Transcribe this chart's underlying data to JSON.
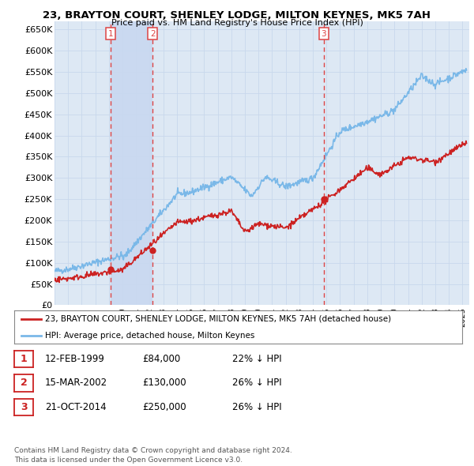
{
  "title": "23, BRAYTON COURT, SHENLEY LODGE, MILTON KEYNES, MK5 7AH",
  "subtitle": "Price paid vs. HM Land Registry's House Price Index (HPI)",
  "ylim": [
    0,
    670000
  ],
  "yticks": [
    0,
    50000,
    100000,
    150000,
    200000,
    250000,
    300000,
    350000,
    400000,
    450000,
    500000,
    550000,
    600000,
    650000
  ],
  "ytick_labels": [
    "£0",
    "£50K",
    "£100K",
    "£150K",
    "£200K",
    "£250K",
    "£300K",
    "£350K",
    "£400K",
    "£450K",
    "£500K",
    "£550K",
    "£600K",
    "£650K"
  ],
  "hpi_color": "#7ab8e8",
  "price_color": "#cc2222",
  "vline_color": "#dd4444",
  "grid_color": "#c8d8ec",
  "plot_bg": "#dde8f4",
  "shade_color": "#c8d8f0",
  "transactions": [
    {
      "label": "1",
      "date": 1999.12,
      "price": 84000
    },
    {
      "label": "2",
      "date": 2002.21,
      "price": 130000
    },
    {
      "label": "3",
      "date": 2014.8,
      "price": 250000
    }
  ],
  "legend_property_label": "23, BRAYTON COURT, SHENLEY LODGE, MILTON KEYNES, MK5 7AH (detached house)",
  "legend_hpi_label": "HPI: Average price, detached house, Milton Keynes",
  "table_rows": [
    {
      "num": "1",
      "date": "12-FEB-1999",
      "price": "£84,000",
      "hpi": "22% ↓ HPI"
    },
    {
      "num": "2",
      "date": "15-MAR-2002",
      "price": "£130,000",
      "hpi": "26% ↓ HPI"
    },
    {
      "num": "3",
      "date": "21-OCT-2014",
      "price": "£250,000",
      "hpi": "26% ↓ HPI"
    }
  ],
  "footer": "Contains HM Land Registry data © Crown copyright and database right 2024.\nThis data is licensed under the Open Government Licence v3.0.",
  "xmin": 1995.0,
  "xmax": 2025.5
}
